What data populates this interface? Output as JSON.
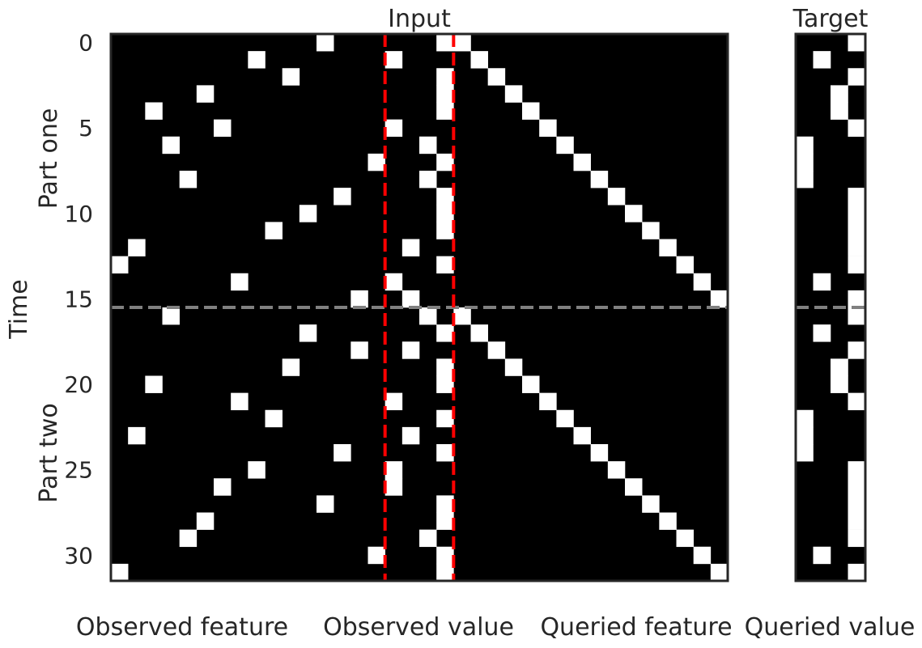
{
  "chart_data": [
    {
      "type": "heatmap",
      "title": "Input",
      "ylabel": "Time",
      "y_group_labels": [
        "Part one",
        "Part two"
      ],
      "y_ticks": [
        0,
        5,
        10,
        15,
        20,
        25,
        30
      ],
      "x_group_labels": [
        "Observed feature",
        "Observed value",
        "Queried feature"
      ],
      "n_rows": 32,
      "n_cols": 36,
      "colormap": {
        "0": "#000000",
        "1": "#ffffff"
      },
      "value_separators_after_col": [
        15.5,
        19.5
      ],
      "part_separator_after_row": 15.5,
      "separator_colors": {
        "value": "#ff0000",
        "part": "#808080"
      },
      "white_cells": [
        [
          0,
          12
        ],
        [
          0,
          19
        ],
        [
          0,
          20
        ],
        [
          1,
          8
        ],
        [
          1,
          16
        ],
        [
          1,
          21
        ],
        [
          2,
          10
        ],
        [
          2,
          19
        ],
        [
          2,
          22
        ],
        [
          3,
          5
        ],
        [
          3,
          19
        ],
        [
          3,
          23
        ],
        [
          4,
          2
        ],
        [
          4,
          19
        ],
        [
          4,
          24
        ],
        [
          5,
          6
        ],
        [
          5,
          16
        ],
        [
          5,
          25
        ],
        [
          6,
          3
        ],
        [
          6,
          18
        ],
        [
          6,
          26
        ],
        [
          7,
          15
        ],
        [
          7,
          19
        ],
        [
          7,
          27
        ],
        [
          8,
          4
        ],
        [
          8,
          18
        ],
        [
          8,
          28
        ],
        [
          9,
          13
        ],
        [
          9,
          19
        ],
        [
          9,
          29
        ],
        [
          10,
          11
        ],
        [
          10,
          19
        ],
        [
          10,
          30
        ],
        [
          11,
          9
        ],
        [
          11,
          19
        ],
        [
          11,
          31
        ],
        [
          12,
          1
        ],
        [
          12,
          17
        ],
        [
          12,
          32
        ],
        [
          13,
          0
        ],
        [
          13,
          19
        ],
        [
          13,
          33
        ],
        [
          14,
          7
        ],
        [
          14,
          16
        ],
        [
          14,
          34
        ],
        [
          15,
          14
        ],
        [
          15,
          17
        ],
        [
          15,
          35
        ],
        [
          16,
          3
        ],
        [
          16,
          18
        ],
        [
          16,
          20
        ],
        [
          17,
          11
        ],
        [
          17,
          19
        ],
        [
          17,
          21
        ],
        [
          18,
          14
        ],
        [
          18,
          17
        ],
        [
          18,
          22
        ],
        [
          19,
          10
        ],
        [
          19,
          19
        ],
        [
          19,
          23
        ],
        [
          20,
          2
        ],
        [
          20,
          19
        ],
        [
          20,
          24
        ],
        [
          21,
          7
        ],
        [
          21,
          16
        ],
        [
          21,
          25
        ],
        [
          22,
          9
        ],
        [
          22,
          19
        ],
        [
          22,
          26
        ],
        [
          23,
          1
        ],
        [
          23,
          17
        ],
        [
          23,
          27
        ],
        [
          24,
          13
        ],
        [
          24,
          19
        ],
        [
          24,
          28
        ],
        [
          25,
          8
        ],
        [
          25,
          16
        ],
        [
          25,
          29
        ],
        [
          26,
          6
        ],
        [
          26,
          16
        ],
        [
          26,
          30
        ],
        [
          27,
          12
        ],
        [
          27,
          19
        ],
        [
          27,
          31
        ],
        [
          28,
          5
        ],
        [
          28,
          19
        ],
        [
          28,
          32
        ],
        [
          29,
          4
        ],
        [
          29,
          18
        ],
        [
          29,
          33
        ],
        [
          30,
          15
        ],
        [
          30,
          19
        ],
        [
          30,
          34
        ],
        [
          31,
          0
        ],
        [
          31,
          19
        ],
        [
          31,
          35
        ]
      ]
    },
    {
      "type": "heatmap",
      "title": "Target",
      "x_group_labels": [
        "Queried value"
      ],
      "n_rows": 32,
      "n_cols": 4,
      "colormap": {
        "0": "#000000",
        "1": "#ffffff"
      },
      "part_separator_after_row": 15.5,
      "separator_colors": {
        "part": "#808080"
      },
      "white_cells": [
        [
          0,
          3
        ],
        [
          1,
          1
        ],
        [
          2,
          3
        ],
        [
          3,
          2
        ],
        [
          4,
          2
        ],
        [
          5,
          3
        ],
        [
          6,
          0
        ],
        [
          7,
          0
        ],
        [
          8,
          0
        ],
        [
          9,
          3
        ],
        [
          10,
          3
        ],
        [
          11,
          3
        ],
        [
          12,
          3
        ],
        [
          13,
          3
        ],
        [
          14,
          1
        ],
        [
          15,
          3
        ],
        [
          16,
          3
        ],
        [
          17,
          1
        ],
        [
          18,
          3
        ],
        [
          19,
          2
        ],
        [
          20,
          2
        ],
        [
          21,
          3
        ],
        [
          22,
          0
        ],
        [
          23,
          0
        ],
        [
          24,
          0
        ],
        [
          25,
          3
        ],
        [
          26,
          3
        ],
        [
          27,
          3
        ],
        [
          28,
          3
        ],
        [
          29,
          3
        ],
        [
          30,
          1
        ],
        [
          31,
          3
        ]
      ]
    }
  ]
}
